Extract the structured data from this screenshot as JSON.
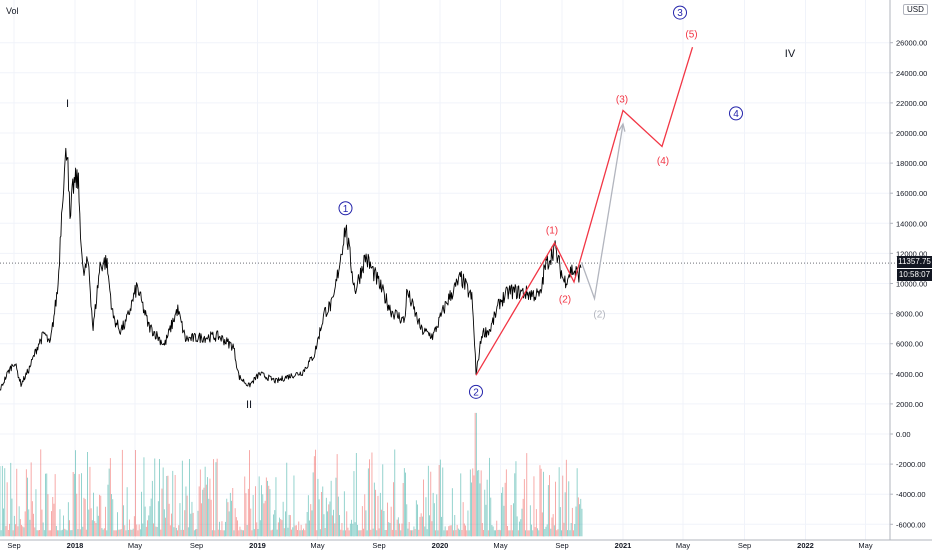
{
  "header": {
    "vol_label": "Vol",
    "currency": "USD"
  },
  "last_price_label": "11357.75",
  "countdown_label": "10:58:07",
  "colors": {
    "candle": "#000000",
    "wave_main": "#f23645",
    "wave_alt": "#b2b5be",
    "circled": "#2424ab",
    "vol_up": "#26a69a",
    "vol_down": "#ef5350"
  },
  "chart_data": {
    "type": "line",
    "title": "",
    "x_ticks": [
      "Sep",
      "2018",
      "May",
      "Sep",
      "2019",
      "May",
      "Sep",
      "2020",
      "May",
      "Sep",
      "2021",
      "May",
      "Sep",
      "2022",
      "May"
    ],
    "y_ticks": [
      "26000.00",
      "24000.00",
      "22000.00",
      "20000.00",
      "18000.00",
      "16000.00",
      "14000.00",
      "12000.00",
      "10000.00",
      "8000.00",
      "6000.00",
      "4000.00",
      "2000.00",
      "0.00",
      "-2000.00",
      "-4000.00",
      "-6000.00"
    ],
    "ylim": [
      -6600,
      28000
    ],
    "grid": true,
    "last_price": 11357.75,
    "price_path": [
      [
        "2017-07-15",
        2200
      ],
      [
        "2017-08-01",
        2700
      ],
      [
        "2017-08-20",
        4100
      ],
      [
        "2017-09-02",
        4800
      ],
      [
        "2017-09-15",
        3300
      ],
      [
        "2017-10-01",
        4300
      ],
      [
        "2017-10-20",
        6000
      ],
      [
        "2017-11-01",
        6700
      ],
      [
        "2017-11-12",
        5900
      ],
      [
        "2017-11-28",
        9800
      ],
      [
        "2017-12-07",
        16000
      ],
      [
        "2017-12-17",
        19500
      ],
      [
        "2017-12-22",
        13800
      ],
      [
        "2017-12-28",
        16500
      ],
      [
        "2018-01-07",
        17000
      ],
      [
        "2018-01-17",
        10500
      ],
      [
        "2018-01-28",
        11500
      ],
      [
        "2018-02-06",
        6900
      ],
      [
        "2018-02-20",
        11200
      ],
      [
        "2018-03-05",
        11500
      ],
      [
        "2018-03-18",
        7800
      ],
      [
        "2018-04-01",
        6900
      ],
      [
        "2018-04-12",
        7300
      ],
      [
        "2018-05-05",
        9800
      ],
      [
        "2018-05-28",
        7200
      ],
      [
        "2018-06-15",
        6500
      ],
      [
        "2018-06-29",
        5900
      ],
      [
        "2018-07-25",
        8300
      ],
      [
        "2018-08-10",
        6300
      ],
      [
        "2018-09-05",
        6400
      ],
      [
        "2018-10-15",
        6500
      ],
      [
        "2018-11-14",
        5800
      ],
      [
        "2018-11-25",
        3800
      ],
      [
        "2018-12-15",
        3200
      ],
      [
        "2019-01-05",
        4000
      ],
      [
        "2019-02-08",
        3500
      ],
      [
        "2019-03-01",
        3800
      ],
      [
        "2019-04-01",
        4100
      ],
      [
        "2019-04-25",
        5300
      ],
      [
        "2019-05-15",
        8100
      ],
      [
        "2019-06-01",
        8700
      ],
      [
        "2019-06-26",
        13800
      ],
      [
        "2019-07-15",
        9500
      ],
      [
        "2019-08-05",
        11800
      ],
      [
        "2019-09-01",
        10000
      ],
      [
        "2019-09-25",
        8200
      ],
      [
        "2019-10-22",
        7500
      ],
      [
        "2019-10-27",
        9500
      ],
      [
        "2019-11-25",
        6900
      ],
      [
        "2019-12-18",
        6500
      ],
      [
        "2020-01-15",
        8800
      ],
      [
        "2020-02-12",
        10400
      ],
      [
        "2020-03-05",
        9000
      ],
      [
        "2020-03-12",
        5000
      ],
      [
        "2020-03-13",
        3900
      ],
      [
        "2020-03-25",
        6700
      ],
      [
        "2020-04-10",
        6900
      ],
      [
        "2020-04-30",
        8800
      ],
      [
        "2020-05-20",
        9500
      ],
      [
        "2020-06-15",
        9400
      ],
      [
        "2020-07-20",
        9200
      ],
      [
        "2020-07-28",
        11000
      ],
      [
        "2020-08-17",
        12400
      ],
      [
        "2020-09-05",
        10100
      ],
      [
        "2020-09-20",
        10900
      ],
      [
        "2020-10-06",
        10600
      ],
      [
        "2020-10-10",
        11357.75
      ]
    ],
    "wave_main_path": [
      [
        "2020-03-13",
        3900
      ],
      [
        "2020-08-17",
        12700
      ],
      [
        "2020-09-25",
        10100
      ],
      [
        "2021-01-01",
        21500
      ],
      [
        "2021-03-20",
        19100
      ],
      [
        "2021-05-20",
        25700
      ]
    ],
    "wave_alt_path": [
      [
        "2020-10-10",
        11400
      ],
      [
        "2020-11-05",
        9000
      ],
      [
        "2021-01-01",
        20600
      ]
    ],
    "annotations": [
      {
        "label": "I",
        "date": "2017-12-17",
        "y": 22000,
        "style": "roman"
      },
      {
        "label": "II",
        "date": "2018-12-15",
        "y": 2000,
        "style": "roman"
      },
      {
        "label": "IV",
        "date": "2021-12-01",
        "y": 25300,
        "style": "roman"
      },
      {
        "label": "1",
        "date": "2019-06-26",
        "y": 15000,
        "style": "circled"
      },
      {
        "label": "2",
        "date": "2020-03-13",
        "y": 2800,
        "style": "circled"
      },
      {
        "label": "3",
        "date": "2021-04-25",
        "y": 28000,
        "style": "circled"
      },
      {
        "label": "4",
        "date": "2021-08-15",
        "y": 21300,
        "style": "circled"
      },
      {
        "label": "(1)",
        "date": "2020-08-12",
        "y": 13600,
        "style": "paren"
      },
      {
        "label": "(2)",
        "date": "2020-09-07",
        "y": 9000,
        "style": "paren"
      },
      {
        "label": "(3)",
        "date": "2020-12-30",
        "y": 22300,
        "style": "paren"
      },
      {
        "label": "(4)",
        "date": "2021-03-22",
        "y": 18200,
        "style": "paren"
      },
      {
        "label": "(5)",
        "date": "2021-05-18",
        "y": 26600,
        "style": "paren"
      },
      {
        "label": "(2)",
        "date": "2020-11-15",
        "y": 8000,
        "style": "paren-alt"
      }
    ],
    "volume": {
      "start": "2017-07-10",
      "end": "2020-10-10",
      "min_level": -6400,
      "max_level": 0,
      "spike_date": "2020-03-12",
      "spike_level": 1400
    }
  }
}
